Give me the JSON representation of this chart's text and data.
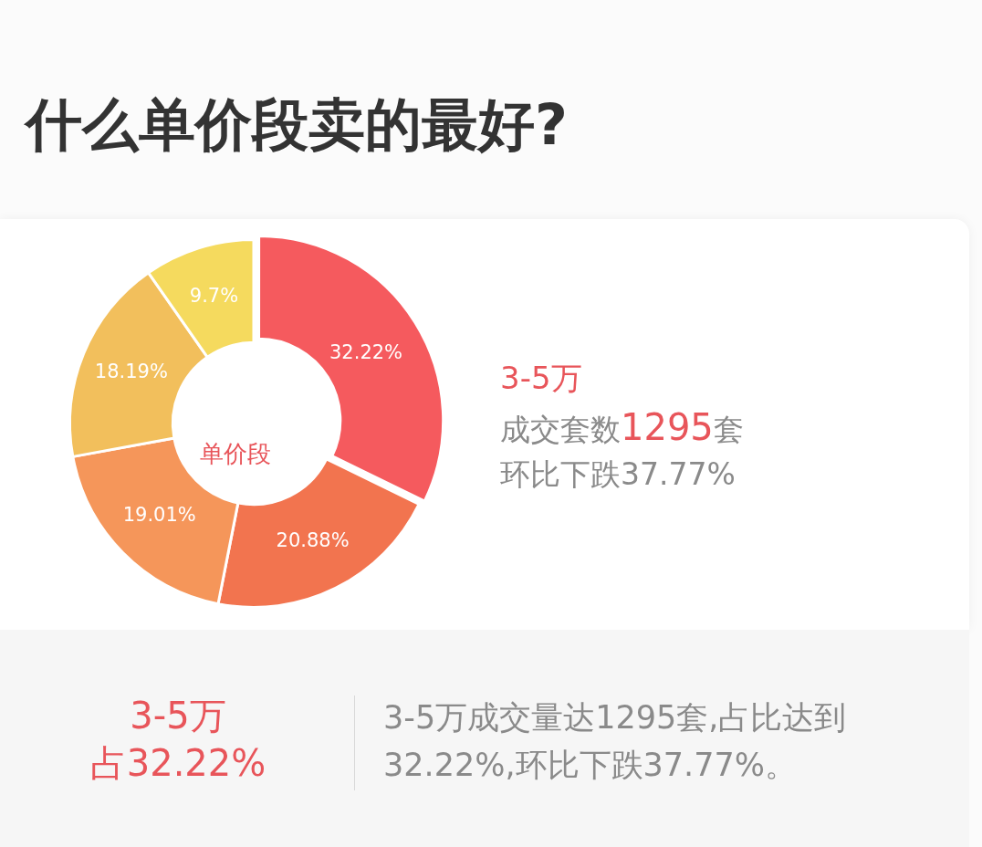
{
  "chart_data": {
    "type": "donut",
    "title": "什么单价段卖的最好?",
    "categories": [
      null,
      null,
      null,
      null,
      null
    ],
    "values": [
      32.22,
      20.88,
      19.01,
      18.19,
      9.7
    ],
    "colors": [
      "#f55a5e",
      "#f2744f",
      "#f5965a",
      "#f2bf5c",
      "#f5da5e"
    ],
    "value_labels": [
      "32.22%",
      "20.88%",
      "19.01%",
      "18.19%",
      "9.7%"
    ],
    "annotations": [
      "单价段",
      "3-5万",
      "成交套数1295套",
      "环比下跌37.77%",
      "3-5万",
      "占32.22%",
      "3-5万成交量达1295套,占比达到32.22%,环比下跌37.77%。"
    ]
  }
}
